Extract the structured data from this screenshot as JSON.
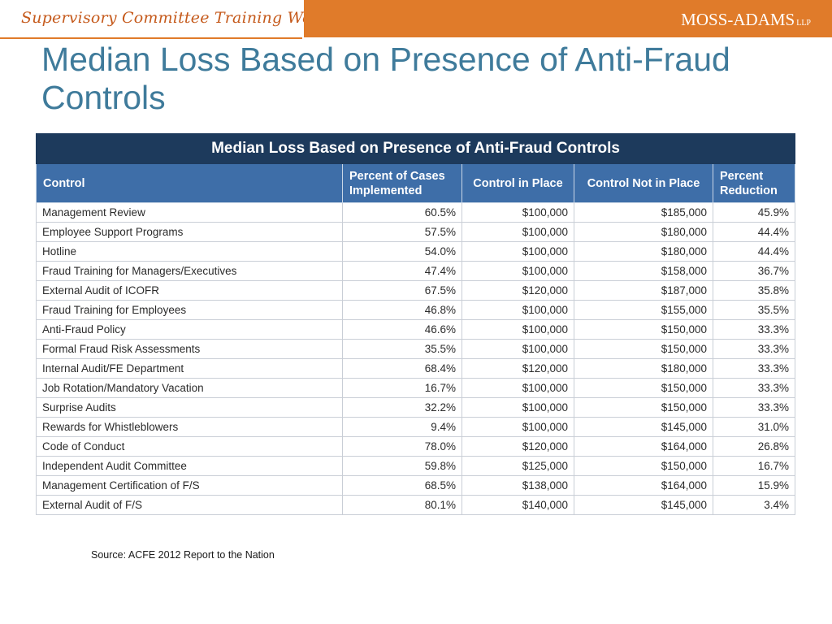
{
  "header": {
    "workshop_title": "Supervisory Committee Training Workshop",
    "logo_text": "MOSS-ADAMS",
    "logo_suffix": "LLP"
  },
  "slide": {
    "title": "Median Loss Based on Presence of Anti-Fraud Controls"
  },
  "table": {
    "title": "Median Loss Based on Presence of Anti-Fraud Controls",
    "columns": [
      "Control",
      "Percent of Cases Implemented",
      "Control in Place",
      "Control Not in Place",
      "Percent Reduction"
    ],
    "rows": [
      [
        "Management Review",
        "60.5%",
        "$100,000",
        "$185,000",
        "45.9%"
      ],
      [
        "Employee Support Programs",
        "57.5%",
        "$100,000",
        "$180,000",
        "44.4%"
      ],
      [
        "Hotline",
        "54.0%",
        "$100,000",
        "$180,000",
        "44.4%"
      ],
      [
        "Fraud Training for Managers/Executives",
        "47.4%",
        "$100,000",
        "$158,000",
        "36.7%"
      ],
      [
        "External Audit of ICOFR",
        "67.5%",
        "$120,000",
        "$187,000",
        "35.8%"
      ],
      [
        "Fraud Training for Employees",
        "46.8%",
        "$100,000",
        "$155,000",
        "35.5%"
      ],
      [
        "Anti-Fraud Policy",
        "46.6%",
        "$100,000",
        "$150,000",
        "33.3%"
      ],
      [
        "Formal Fraud Risk Assessments",
        "35.5%",
        "$100,000",
        "$150,000",
        "33.3%"
      ],
      [
        "Internal Audit/FE Department",
        "68.4%",
        "$120,000",
        "$180,000",
        "33.3%"
      ],
      [
        "Job Rotation/Mandatory Vacation",
        "16.7%",
        "$100,000",
        "$150,000",
        "33.3%"
      ],
      [
        "Surprise Audits",
        "32.2%",
        "$100,000",
        "$150,000",
        "33.3%"
      ],
      [
        "Rewards for Whistleblowers",
        "9.4%",
        "$100,000",
        "$145,000",
        "31.0%"
      ],
      [
        "Code of Conduct",
        "78.0%",
        "$120,000",
        "$164,000",
        "26.8%"
      ],
      [
        "Independent Audit Committee",
        "59.8%",
        "$125,000",
        "$150,000",
        "16.7%"
      ],
      [
        "Management Certification of F/S",
        "68.5%",
        "$138,000",
        "$164,000",
        "15.9%"
      ],
      [
        "External Audit of F/S",
        "80.1%",
        "$140,000",
        "$145,000",
        "3.4%"
      ]
    ]
  },
  "source": "Source: ACFE 2012 Report to the Nation",
  "colors": {
    "accent_orange": "#e07b2a",
    "title_blue": "#3f7b9b",
    "table_title_navy": "#1d3a5c",
    "table_header_blue": "#3e6ea8"
  }
}
